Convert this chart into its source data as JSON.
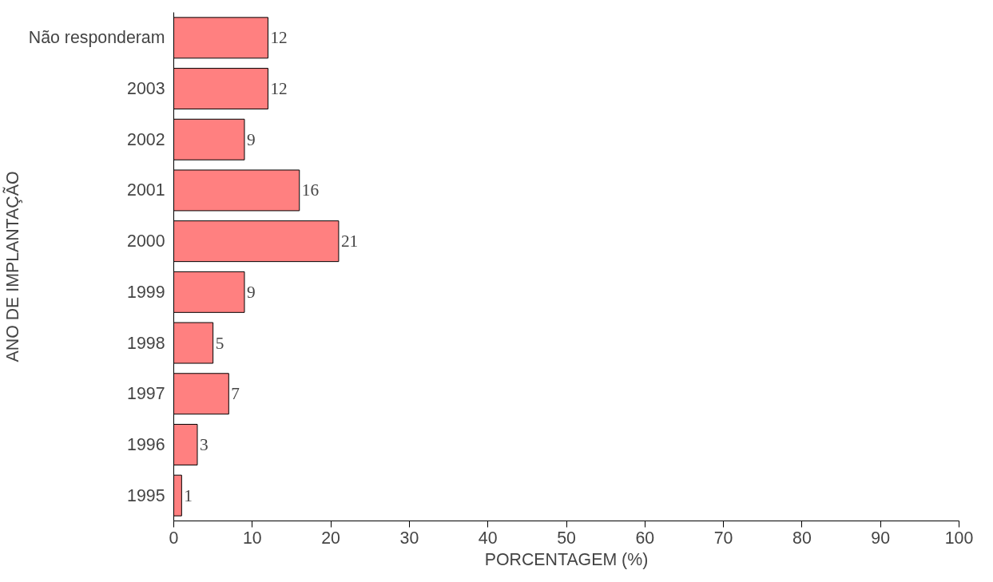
{
  "chart_data": {
    "type": "bar",
    "orientation": "horizontal",
    "categories": [
      "Não responderam",
      "2003",
      "2002",
      "2001",
      "2000",
      "1999",
      "1998",
      "1997",
      "1996",
      "1995"
    ],
    "values": [
      12,
      12,
      9,
      16,
      21,
      9,
      5,
      7,
      3,
      1
    ],
    "color": "#ff8080",
    "xlim": [
      0,
      100
    ],
    "xticks": [
      0,
      10,
      20,
      30,
      40,
      50,
      60,
      70,
      80,
      90,
      100
    ],
    "xlabel": "PORCENTAGEM (%)",
    "ylabel": "ANO DE IMPLANTAÇÃO",
    "data_labels": true,
    "grid": false
  }
}
